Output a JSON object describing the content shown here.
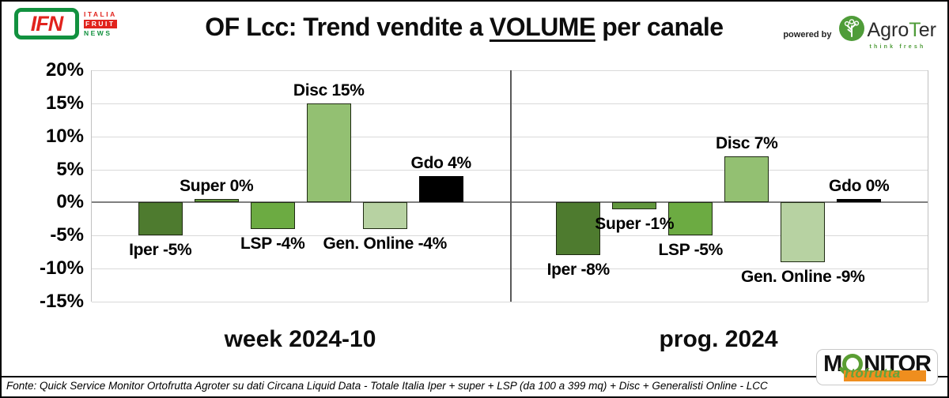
{
  "header": {
    "title_prefix": "OF Lcc: Trend vendite a ",
    "title_underlined": "VOLUME",
    "title_suffix": " per canale",
    "powered_by": "powered by",
    "agroter": {
      "name_pre": "Agro",
      "name_t": "T",
      "name_post": "er",
      "tagline": "think fresh"
    },
    "ifn": {
      "acronym": "IFN",
      "line1": "ITALIA",
      "line2": "FRUIT",
      "line3": "NEWS"
    }
  },
  "chart_data": {
    "type": "bar",
    "title": "OF Lcc: Trend vendite a VOLUME per canale",
    "ylabel": "",
    "ylim": [
      -15,
      20
    ],
    "ytick_step": 5,
    "ytick_labels": [
      "20%",
      "15%",
      "10%",
      "5%",
      "0%",
      "-5%",
      "-10%",
      "-15%"
    ],
    "grid": true,
    "legend": "none",
    "groups": [
      {
        "name": "week 2024-10",
        "bars": [
          {
            "channel": "Iper",
            "value": -5,
            "label": "Iper -5%",
            "color": "#4e7b2f"
          },
          {
            "channel": "Super",
            "value": 0,
            "label": "Super 0%",
            "color": "#61973d"
          },
          {
            "channel": "LSP",
            "value": -4,
            "label": "LSP -4%",
            "color": "#6cab42"
          },
          {
            "channel": "Disc",
            "value": 15,
            "label": "Disc 15%",
            "color": "#93c072"
          },
          {
            "channel": "Gen. Online",
            "value": -4,
            "label": "Gen. Online -4%",
            "color": "#b7d2a2"
          },
          {
            "channel": "Gdo",
            "value": 4,
            "label": "Gdo 4%",
            "color": "#000000"
          }
        ]
      },
      {
        "name": "prog. 2024",
        "bars": [
          {
            "channel": "Iper",
            "value": -8,
            "label": "Iper -8%",
            "color": "#4e7b2f"
          },
          {
            "channel": "Super",
            "value": -1,
            "label": "Super -1%",
            "color": "#61973d"
          },
          {
            "channel": "LSP",
            "value": -5,
            "label": "LSP -5%",
            "color": "#6cab42"
          },
          {
            "channel": "Disc",
            "value": 7,
            "label": "Disc 7%",
            "color": "#93c072"
          },
          {
            "channel": "Gen. Online",
            "value": -9,
            "label": "Gen. Online -9%",
            "color": "#b7d2a2"
          },
          {
            "channel": "Gdo",
            "value": 0,
            "label": "Gdo 0%",
            "color": "#000000"
          }
        ]
      }
    ],
    "colors": {
      "grid": "#d9d9d9",
      "zero_line": "#7f7f7f",
      "divider": "#595959",
      "bar_border": "#1e2a12"
    }
  },
  "footer": {
    "source": "Fonte: Quick Service Monitor Ortofrutta Agroter su dati Circana Liquid Data - Totale Italia Iper + super + LSP (da 100 a 399 mq) + Disc + Generalisti Online - LCC",
    "monitor_logo": {
      "m": "M",
      "nitor": "NITOR",
      "sub": "rtofrutta"
    }
  }
}
